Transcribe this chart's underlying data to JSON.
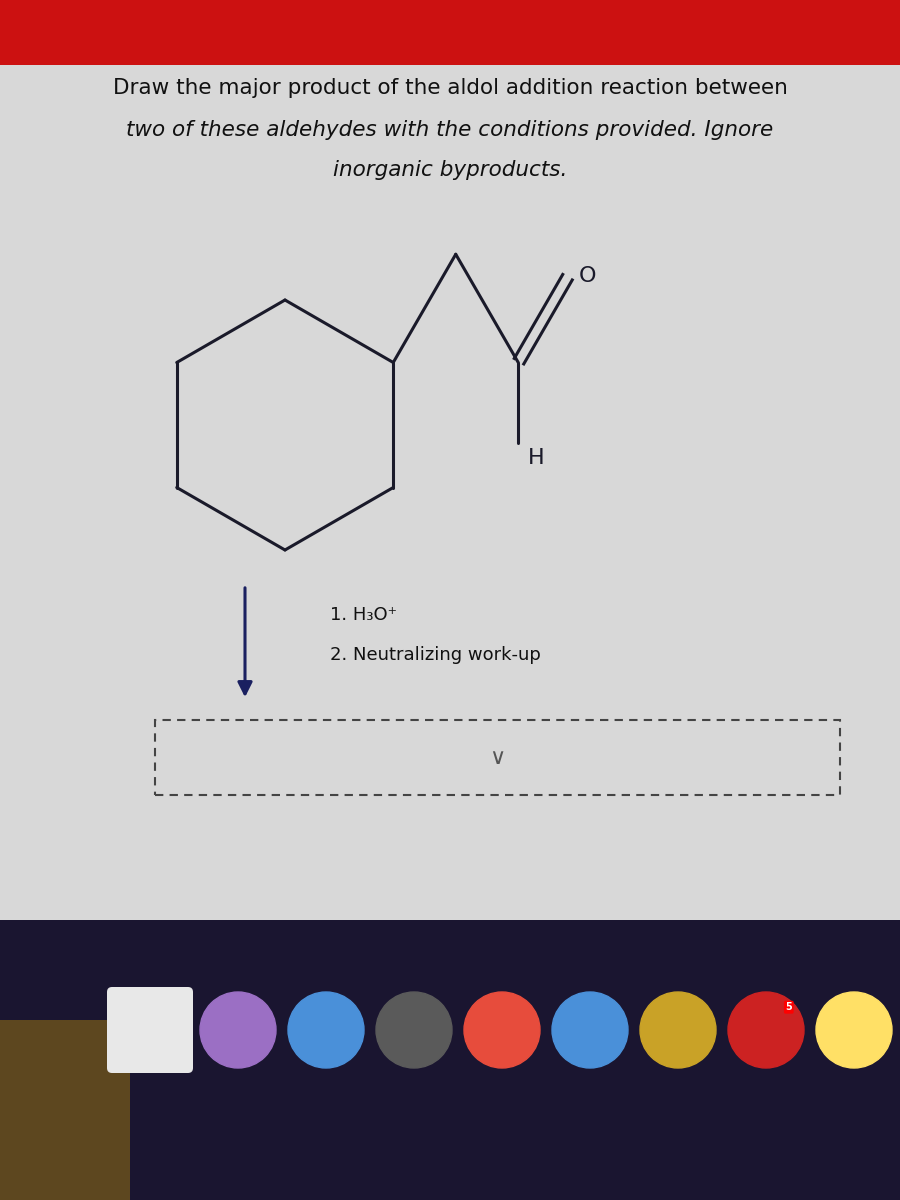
{
  "title_line1": "Draw the major product of the aldol addition reaction between",
  "title_line2": "two of these aldehydes with the conditions provided. Ignore",
  "title_line3": "inorganic byproducts.",
  "condition1": "1. H₃O⁺",
  "condition2": "2. Neutralizing work-up",
  "bg_color": "#d8d8d8",
  "red_bar_color": "#cc1111",
  "molecule_color": "#1a1a2a",
  "arrow_color": "#1a2060",
  "text_color": "#111111",
  "title_fontsize": 15.5,
  "condition_fontsize": 13
}
